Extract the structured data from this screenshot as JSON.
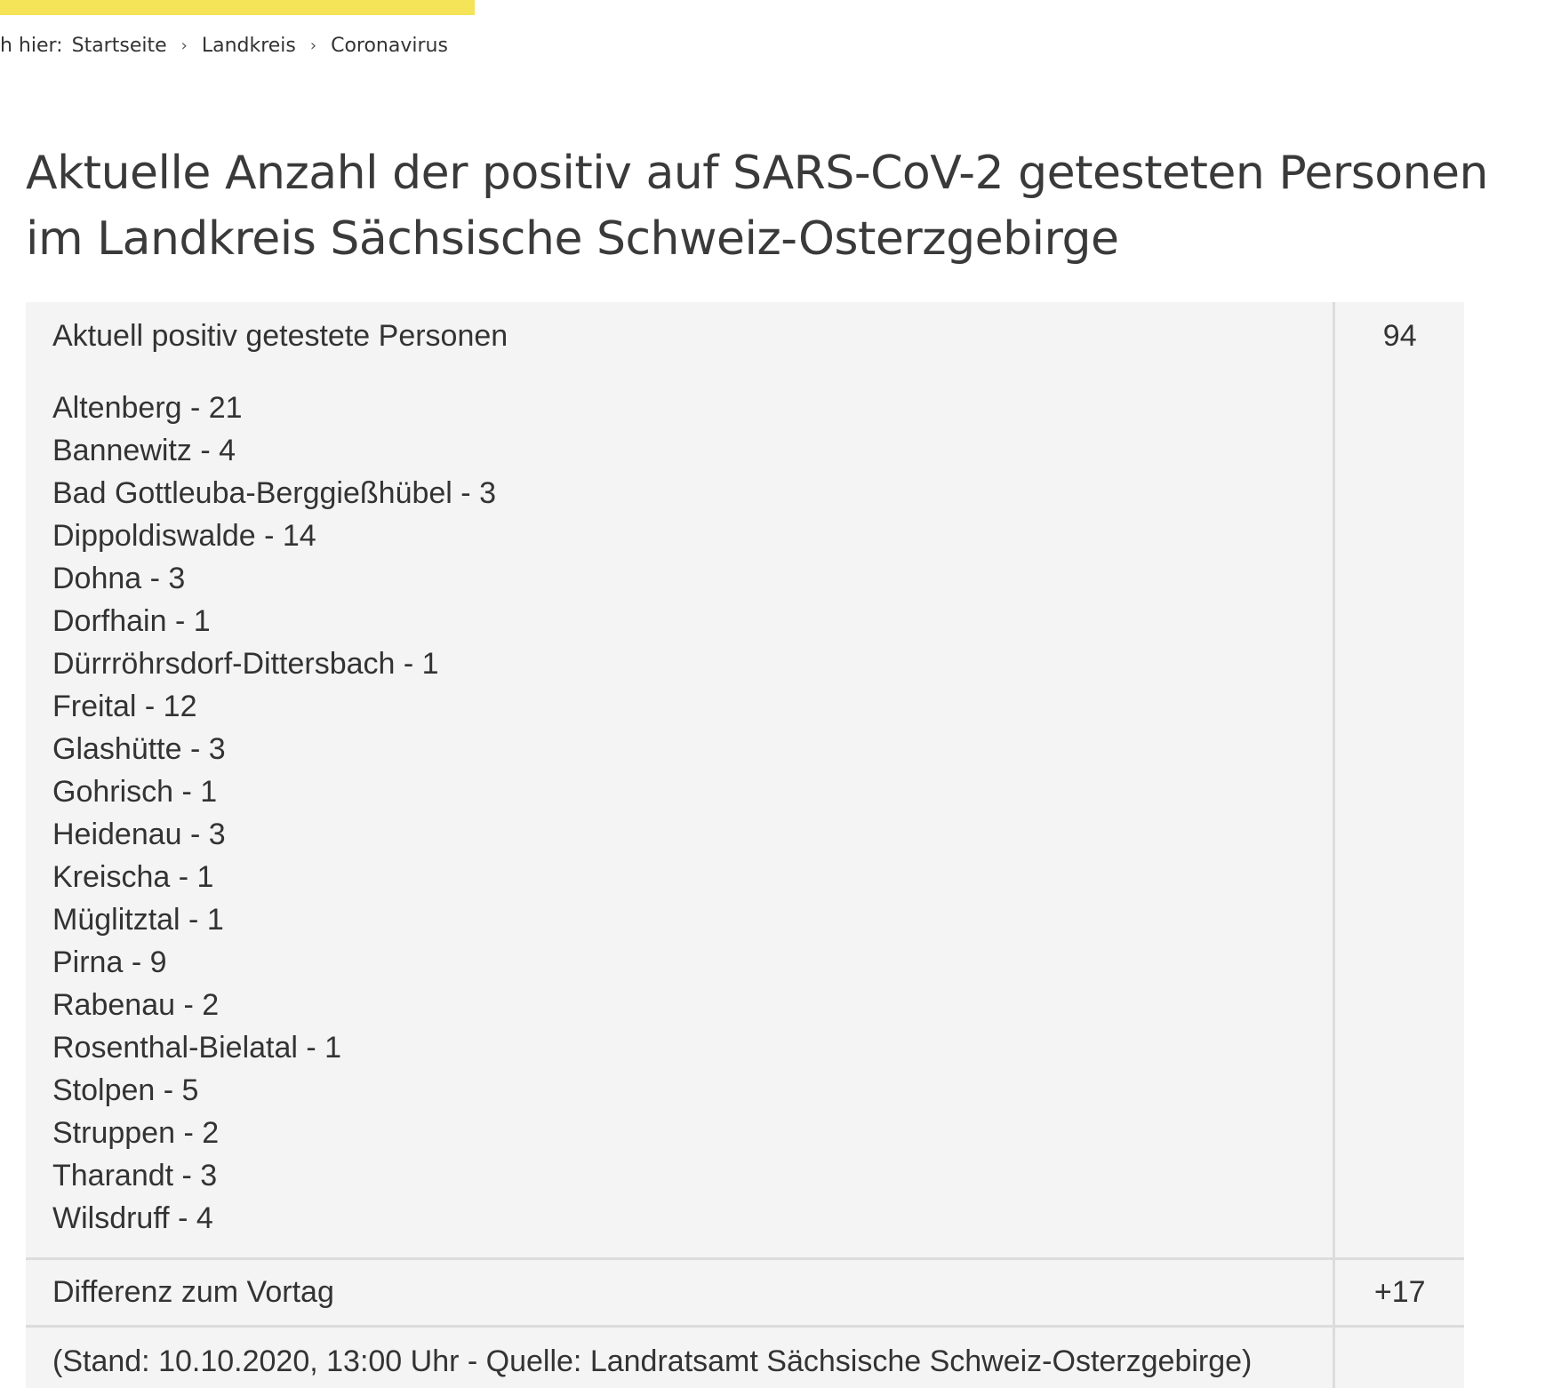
{
  "breadcrumb": {
    "prefix": "h hier:",
    "items": [
      "Startseite",
      "Landkreis",
      "Coronavirus"
    ],
    "separator": "›"
  },
  "title": "Aktuelle Anzahl der positiv auf SARS-CoV-2 getesteten Personen im Landkreis Sächsische Schweiz-Osterzgebirge",
  "table": {
    "total_label": "Aktuell positiv getestete Personen",
    "total_value": "94",
    "towns": [
      "Altenberg - 21",
      "Bannewitz - 4",
      "Bad Gottleuba-Berggießhübel - 3",
      "Dippoldiswalde - 14",
      "Dohna - 3",
      "Dorfhain - 1",
      "Dürrröhrsdorf-Dittersbach - 1",
      "Freital - 12",
      "Glashütte - 3",
      "Gohrisch - 1",
      "Heidenau - 3",
      "Kreischa - 1",
      "Müglitztal - 1",
      "Pirna - 9",
      "Rabenau - 2",
      "Rosenthal-Bielatal - 1",
      "Stolpen - 5",
      "Struppen - 2",
      "Tharandt - 3",
      "Wilsdruff - 4"
    ],
    "diff_label": "Differenz zum Vortag",
    "diff_value": "+17",
    "source_text": "(Stand: 10.10.2020, 13:00 Uhr - Quelle: Landratsamt Sächsische Schweiz-Osterzgebirge)"
  },
  "colors": {
    "accent": "#f5e358",
    "table_background": "#f4f4f4",
    "divider": "#dcdcdc",
    "text": "#333333"
  }
}
